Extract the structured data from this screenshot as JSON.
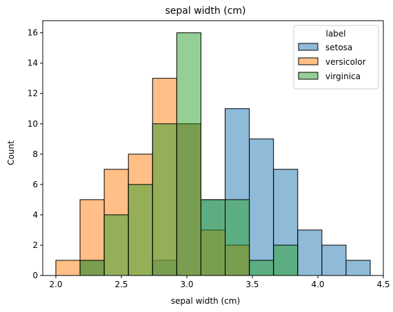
{
  "chart_data": {
    "type": "bar",
    "title": "sepal width (cm)",
    "xlabel": "sepal width (cm)",
    "ylabel": "Count",
    "xlim": [
      1.9,
      4.5
    ],
    "ylim": [
      0,
      16.8
    ],
    "x_ticks": [
      2.0,
      2.5,
      3.0,
      3.5,
      4.0,
      4.5
    ],
    "x_tick_labels": [
      "2.0",
      "2.5",
      "3.0",
      "3.5",
      "4.0",
      "4.5"
    ],
    "y_ticks": [
      0,
      2,
      4,
      6,
      8,
      10,
      12,
      14,
      16
    ],
    "y_tick_labels": [
      "0",
      "2",
      "4",
      "6",
      "8",
      "10",
      "12",
      "14",
      "16"
    ],
    "grid": false,
    "legend": {
      "title": "label",
      "placement": "top-right"
    },
    "bin_edges": [
      2.0,
      2.1846,
      2.3692,
      2.5538,
      2.7385,
      2.9231,
      3.1077,
      3.2923,
      3.4769,
      3.6615,
      3.8462,
      4.0308,
      4.2154,
      4.4
    ],
    "series": [
      {
        "name": "setosa",
        "color": "#1f77b4",
        "counts": [
          0,
          1,
          0,
          0,
          1,
          10,
          5,
          11,
          9,
          7,
          3,
          2,
          1
        ]
      },
      {
        "name": "versicolor",
        "color": "#ff7f0e",
        "counts": [
          1,
          5,
          7,
          8,
          13,
          10,
          3,
          2,
          0,
          0,
          0,
          0,
          0
        ]
      },
      {
        "name": "virginica",
        "color": "#2ca02c",
        "counts": [
          0,
          1,
          4,
          6,
          10,
          16,
          5,
          5,
          1,
          2,
          0,
          0,
          0
        ]
      }
    ]
  }
}
